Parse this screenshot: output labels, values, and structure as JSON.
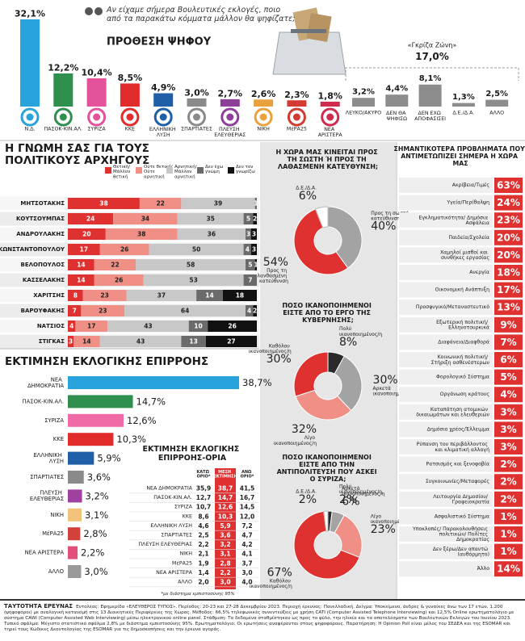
{
  "chart_data": [
    {
      "type": "bar",
      "title": "ΠΡΟΘΕΣΗ ΨΗΦΟΥ",
      "subtitle": "Αν είχαμε σήμερα Βουλευτικές εκλογές, ποιο από τα παρακάτω κόμματα μάλλον θα ψηφίζατε;",
      "categories": [
        "Ν.Δ.",
        "ΠΑΣΟΚ-ΚΙΝ.ΑΛ.",
        "ΣΥΡΙΖΑ",
        "ΚΚΕ",
        "ΕΛΛΗΝΙΚΗ ΛΥΣΗ",
        "ΣΠΑΡΤΙΑΤΕΣ",
        "ΠΛΕΥΣΗ ΕΛΕΥΘΕΡΙΑΣ",
        "ΝΙΚΗ",
        "ΜέΡΑ25",
        "ΝΕΑ ΑΡΙΣΤΕΡΑ",
        "ΛΕΥΚΟ/ΑΚΥΡΟ",
        "ΔΕΝ ΘΑ ΨΗΦΙΣΩ",
        "ΔΕΝ ΕΧΩ ΑΠΟΦΑΣΙΣΕΙ",
        "Δ.Ε./Δ.Α.",
        "ΑΛΛΟ"
      ],
      "values": [
        32.1,
        12.2,
        10.4,
        8.5,
        4.9,
        3.0,
        2.7,
        2.6,
        2.3,
        1.8,
        3.2,
        4.4,
        8.1,
        1.3,
        2.5
      ],
      "value_labels": [
        "32,1%",
        "12,2%",
        "10,4%",
        "8,5%",
        "4,9%",
        "3,0%",
        "2,7%",
        "2,6%",
        "2,3%",
        "1,8%",
        "3,2%",
        "4,4%",
        "8,1%",
        "1,3%",
        "2,5%"
      ],
      "colors": [
        "#29a3dc",
        "#2f8f4f",
        "#e4529b",
        "#e22b2b",
        "#1e5fa8",
        "#8a8a8a",
        "#8e3f9a",
        "#e9a23b",
        "#d33a31",
        "#cf2b4d",
        "#8c8c8c",
        "#8c8c8c",
        "#8c8c8c",
        "#8c8c8c",
        "#8c8c8c"
      ],
      "annotations": [
        "«Γκρίζα Ζώνη»",
        "17,0%"
      ]
    },
    {
      "type": "stacked_bar",
      "title": "Η ΓΝΩΜΗ ΣΑΣ ΓΙΑ ΤΟΥΣ ΠΟΛΙΤΙΚΟΥΣ ΑΡΧΗΓΟΥΣ",
      "categories": [
        "ΜΗΤΣΟΤΑΚΗΣ",
        "ΚΟΥΤΣΟΥΜΠΑΣ",
        "ΑΝΔΡΟΥΛΑΚΗΣ",
        "ΚΩΝΣΤΑΝΤΟΠΟΥΛΟΥ",
        "ΒΕΛΟΠΟΥΛΟΣ",
        "ΚΑΣΣΕΛΑΚΗΣ",
        "ΧΑΡΙΤΣΗΣ",
        "ΒΑΡΟΥΦΑΚΗΣ",
        "ΝΑΤΣΙΟΣ",
        "ΣΤΙΓΚΑΣ"
      ],
      "series": [
        {
          "name": "Θετική/ Μάλλον θετική",
          "color": "#e03131",
          "values": [
            38,
            24,
            20,
            17,
            14,
            14,
            8,
            7,
            4,
            3
          ]
        },
        {
          "name": "Ούτε θετική/ Ούτε αρνητική",
          "color": "#f08f86",
          "values": [
            22,
            34,
            38,
            26,
            22,
            26,
            23,
            23,
            17,
            14
          ]
        },
        {
          "name": "Αρνητική/ Μάλλον αρνητική",
          "color": "#c8c8c8",
          "values": [
            39,
            35,
            36,
            50,
            58,
            53,
            37,
            64,
            43,
            43
          ]
        },
        {
          "name": "Δεν έχω γνώμη",
          "color": "#6b6b6b",
          "values": [
            1,
            5,
            3,
            4,
            5,
            7,
            14,
            4,
            10,
            13
          ]
        },
        {
          "name": "Δεν τον γνωρίζω",
          "color": "#111111",
          "values": [
            null,
            2,
            3,
            3,
            1,
            null,
            18,
            2,
            26,
            27
          ]
        }
      ]
    },
    {
      "type": "hbar",
      "title": "ΕΚΤΙΜΗΣΗ ΕΚΛΟΓΙΚΗΣ ΕΠΙΡΡΟΗΣ",
      "categories": [
        "ΝΕΑ ΔΗΜΟΚΡΑΤΙΑ",
        "ΠΑΣΟΚ-ΚΙΝ.ΑΛ.",
        "ΣΥΡΙΖΑ",
        "ΚΚΕ",
        "ΕΛΛΗΝΙΚΗ ΛΥΣΗ",
        "ΣΠΑΡΤΙΑΤΕΣ",
        "ΠΛΕΥΣΗ ΕΛΕΥΘΕΡΙΑΣ",
        "ΝΙΚΗ",
        "ΜέΡΑ25",
        "ΝΕΑ ΑΡΙΣΤΕΡΑ",
        "ΑΛΛΟ"
      ],
      "values": [
        38.7,
        14.7,
        12.6,
        10.3,
        5.9,
        3.6,
        3.2,
        3.1,
        2.8,
        2.2,
        3.0
      ],
      "value_labels": [
        "38,7%",
        "14,7%",
        "12,6%",
        "10,3%",
        "5,9%",
        "3,6%",
        "3,2%",
        "3,1%",
        "2,8%",
        "2,2%",
        "3,0%"
      ],
      "colors": [
        "#29a3dc",
        "#2f8f4f",
        "#f06aa8",
        "#e22b2b",
        "#1e5fa8",
        "#8a8a8a",
        "#a040a0",
        "#f0c27a",
        "#d4403a",
        "#e0507a",
        "#9a9a9a"
      ]
    },
    {
      "type": "table",
      "title": "ΕΚΤΙΜΗΣΗ ΕΚΛΟΓΙΚΗΣ ΕΠΙΡΡΟΗΣ-ΟΡΙΑ",
      "columns": [
        "ΚΑΤΩ ΟΡΙΟ*",
        "ΜΕΣΗ ΕΚΤΙΜΗΣΗ",
        "ΑΝΩ ΟΡΙΟ*"
      ],
      "rows": [
        [
          "ΝΕΑ ΔΗΜΟΚΡΑΤΙΑ",
          "35,9",
          "38,7",
          "41,5"
        ],
        [
          "ΠΑΣΟΚ-ΚΙΝ.ΑΛ.",
          "12,7",
          "14,7",
          "16,7"
        ],
        [
          "ΣΥΡΙΖΑ",
          "10,7",
          "12,6",
          "14,5"
        ],
        [
          "ΚΚΕ",
          "8,6",
          "10,3",
          "12,0"
        ],
        [
          "ΕΛΛΗΝΙΚΗ ΛΥΣΗ",
          "4,6",
          "5,9",
          "7,2"
        ],
        [
          "ΣΠΑΡΤΙΑΤΕΣ",
          "2,5",
          "3,6",
          "4,7"
        ],
        [
          "ΠΛΕΥΣΗ ΕΛΕΥΘΕΡΙΑΣ",
          "2,2",
          "3,2",
          "4,2"
        ],
        [
          "ΝΙΚΗ",
          "2,1",
          "3,1",
          "4,1"
        ],
        [
          "ΜέΡΑ25",
          "1,9",
          "2,8",
          "3,7"
        ],
        [
          "ΝΕΑ ΑΡΙΣΤΕΡΑ",
          "1,4",
          "2,2",
          "3,0"
        ],
        [
          "ΑΛΛΟ",
          "2,0",
          "3,0",
          "4,0"
        ]
      ],
      "note": "*με διάστημα εμπιστοσύνης 95%"
    },
    {
      "type": "pie",
      "title": "Η ΧΩΡΑ ΜΑΣ ΚΙΝΕΙΤΑΙ ΠΡΟΣ ΤΗ ΣΩΣΤΗ Ή ΠΡΟΣ ΤΗ ΛΑΘΑΣΜΕΝΗ ΚΑΤΕΥΘΥΝΣΗ;",
      "categories": [
        "Προς τη σωστή κατεύθυνση",
        "Προς τη λανθασμένη κατεύθυνση",
        "Δ.Ε./Δ.Α."
      ],
      "values": [
        40,
        54,
        6
      ],
      "value_labels": [
        "40%",
        "54%",
        "6%"
      ],
      "colors": [
        "#a3a3a3",
        "#e03131",
        "#ffffff"
      ]
    },
    {
      "type": "pie",
      "title": "ΠΟΣΟ ΙΚΑΝΟΠΟΙΗΜΕΝΟΙ ΕΙΣΤΕ ΑΠΟ ΤΟ ΕΡΓΟ ΤΗΣ ΚΥΒΕΡΝΗΣΗΣ;",
      "categories": [
        "Πολύ ικανοποιημένος/η",
        "Αρκετά ικανοποιημένος/η",
        "Λίγο ικανοποιημένος/η",
        "Καθόλου ικανοποιημένος/η"
      ],
      "values": [
        8,
        30,
        32,
        30
      ],
      "value_labels": [
        "8%",
        "30%",
        "32%",
        "30%"
      ],
      "colors": [
        "#2a2a2a",
        "#a3a3a3",
        "#f08f86",
        "#e03131"
      ]
    },
    {
      "type": "pie",
      "title": "ΠΟΣΟ ΙΚΑΝΟΠΟΙΗΜΕΝΟΙ ΕΙΣΤΕ ΑΠΟ ΤΗΝ ΑΝΤΙΠΟΛΙΤΕΥΣΗ ΠΟΥ ΑΣΚΕΙ Ο ΣΥΡΙΖΑ;",
      "categories": [
        "Πολύ ικανοποιημένος/η",
        "Αρκετά ικανοποιημένος/η",
        "Λίγο ικανοποιημένος/η",
        "Καθόλου ικανοποιημένος/η",
        "Δ.Ε./Δ.Α."
      ],
      "values": [
        2,
        6,
        23,
        67,
        2
      ],
      "value_labels": [
        "2%",
        "6%",
        "23%",
        "67%",
        "2%"
      ],
      "colors": [
        "#2a2a2a",
        "#a3a3a3",
        "#f08f86",
        "#e03131",
        "#ffffff"
      ]
    },
    {
      "type": "list",
      "title": "ΣΗΜΑΝΤΙΚΟΤΕΡΑ ΠΡΟΒΛΗΜΑΤΑ ΠΟΥ ΑΝΤΙΜΕΤΩΠΙΖΕΙ ΣΗΜΕΡΑ Η ΧΩΡΑ ΜΑΣ",
      "categories": [
        "Ακρίβεια/Τιμές",
        "Υγεία/Περίθαλψη",
        "Εγκληματικότητα/ Δημόσια Ασφάλεια",
        "Παιδεία/Σχολεία",
        "Χαμηλοί μισθοί και συνθήκες εργασίας",
        "Ανεργία",
        "Οικονομική Ανάπτυξη",
        "Προσφυγικό/Μεταναστευτικό",
        "Εξωτερική πολιτική/ Ελληνοτουρκικά",
        "Διαφάνεια/Διαφθορά",
        "Κοινωνική πολιτική/ Στήριξη ασθενέστερων",
        "Φορολογικό Σύστημα",
        "Οργάνωση κράτους",
        "Καταπάτηση ατομικών δικαιωμάτων και ελευθεριών",
        "Δημόσιο χρέος/Έλλειμμα",
        "Ρύπανση του περιβάλλοντος και κλιματική αλλαγή",
        "Ρατσισμός και ξενοφοβία",
        "Συγκοινωνίες/Μεταφορές",
        "Λειτουργία Δημοσίου/ Γραφειοκρατία",
        "Ασφαλιστικό Σύστημα",
        "Υποκλοπές/ Παρακολουθήσεις πολιτικών/ Πολίτες Δημοκρατίας",
        "Δεν ξέρω/Δεν απαντώ (αυθόρμητο)",
        "Άλλο"
      ],
      "values": [
        63,
        24,
        23,
        20,
        20,
        18,
        17,
        13,
        9,
        7,
        6,
        5,
        4,
        3,
        3,
        3,
        2,
        2,
        2,
        1,
        1,
        1,
        14
      ],
      "value_labels": [
        "63%",
        "24%",
        "23%",
        "20%",
        "20%",
        "18%",
        "17%",
        "13%",
        "9%",
        "7%",
        "6%",
        "5%",
        "4%",
        "3%",
        "3%",
        "3%",
        "2%",
        "2%",
        "2%",
        "1%",
        "1%",
        "1%",
        "14%"
      ],
      "color": "#e03131"
    }
  ],
  "footer": {
    "label": "ΤΑΥΤΟΤΗΤΑ ΕΡΕΥΝΑΣ",
    "text": "Εντολέας: Εφημερίδα «ΕΛΕΥΘΕΡΟΣ ΤΥΠΟΣ». Περίοδος: 20-23 και 27-28 Δεκεμβρίου 2023. Περιοχή έρευνας: Πανελλαδική. Δείγμα: Υποκείμενο, άνδρες & γυναίκες άνω των 17 ετών, 1.200 (ψηφοφόροι) με αναλογική κατανομή στις 13 Διοικητικές Περιφέρειες της Χώρας. Μέθοδος: 66,5% τηλεφωνικές συνεντεύξεις με χρήση CATI (Computer Assisted Telephone Interviewing) και 12,5% Online ερωτηματολόγιο με σύστημα CAWI (Computer Assisted Web Interviewing) μέσω ηλεκτρονικού online panel. Στάθμιση: Τα δεδομένα σταθμίστηκαν ως προς το φύλο, την ηλικία και τα αποτελέσματα των Βουλευτικών Εκλογών του Ιουνίου 2023. Τυπικό σφάλμα: Μέγιστο στατιστικό σφάλμα 2,8% με διάστημα εμπιστοσύνης 95%. Ερωτηματολόγιο: Οι ερωτήσεις αναφέρονται στους ψηφοφόρους. Παρατήρηση: Η Opinion Poll είναι μέλος του ΣΕΔΕΑ και της ESOMAR και τηρεί τους Κώδικες Δεοντολογίας της ESOMAR για τις δημοσκοπήσεις και την έρευνα αγοράς."
  }
}
